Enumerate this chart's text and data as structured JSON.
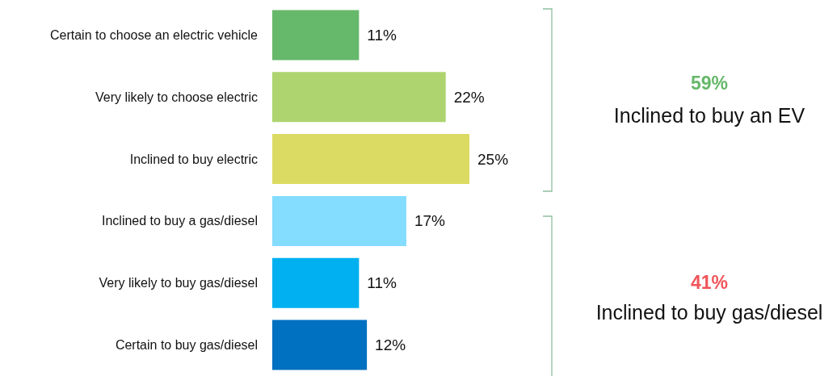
{
  "chart_data": {
    "type": "bar",
    "orientation": "horizontal",
    "categories": [
      "Certain to choose an electric vehicle",
      "Very likely to choose electric",
      "Inclined to buy electric",
      "Inclined to buy a gas/diesel",
      "Very likely to buy gas/diesel",
      "Certain to buy gas/diesel"
    ],
    "values": [
      11,
      22,
      25,
      17,
      11,
      12
    ],
    "value_labels": [
      "11%",
      "22%",
      "25%",
      "17%",
      "11%",
      "12%"
    ],
    "colors": [
      "#66b86a",
      "#add46f",
      "#dbdb63",
      "#84dcff",
      "#00b0f0",
      "#0070c0"
    ],
    "tick_labels": "y",
    "annotations": [
      "59%",
      "Inclined to buy an EV",
      "41%",
      "Inclined to buy gas/diesel"
    ]
  }
}
